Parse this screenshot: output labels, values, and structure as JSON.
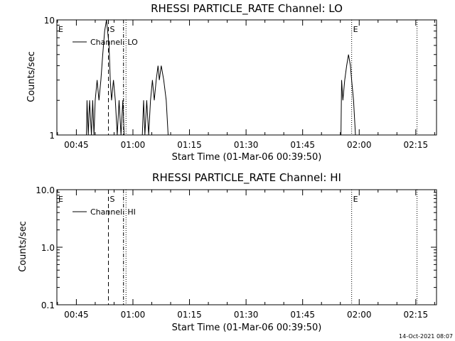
{
  "footer": {
    "timestamp": "14-Oct-2021 08:07"
  },
  "chart_data": [
    {
      "type": "line",
      "title": "RHESSI PARTICLE_RATE Channel: LO",
      "xlabel": "Start Time (01-Mar-06 00:39:50)",
      "ylabel": "Counts/sec",
      "yscale": "log",
      "ylim": [
        1,
        10
      ],
      "yticks": [
        {
          "v": 1,
          "label": "1"
        },
        {
          "v": 10,
          "label": "10"
        }
      ],
      "xlim": [
        "00:39:50",
        "02:20:30"
      ],
      "xticks": [
        {
          "t": "00:45",
          "label": "00:45"
        },
        {
          "t": "01:00",
          "label": "01:00"
        },
        {
          "t": "01:15",
          "label": "01:15"
        },
        {
          "t": "01:30",
          "label": "01:30"
        },
        {
          "t": "01:45",
          "label": "01:45"
        },
        {
          "t": "02:00",
          "label": "02:00"
        },
        {
          "t": "02:15",
          "label": "02:15"
        }
      ],
      "legend": {
        "position": "top-left",
        "label": "Channel: LO"
      },
      "markers": [
        {
          "t": "00:39:50",
          "label": "E",
          "style": "solid"
        },
        {
          "t": "00:53:30",
          "label": "S",
          "style": "dashed"
        },
        {
          "t": "00:57:30",
          "label": "",
          "style": "dash-dot"
        },
        {
          "t": "00:58:10",
          "label": "",
          "style": "dotted"
        },
        {
          "t": "01:58:00",
          "label": "E",
          "style": "dotted"
        },
        {
          "t": "02:15:20",
          "label": "",
          "style": "dotted"
        }
      ],
      "series": [
        {
          "name": "Channel: LO",
          "segments": [
            [
              [
                "00:47:40",
                1
              ],
              [
                "00:47:50",
                2
              ],
              [
                "00:48:10",
                1
              ],
              [
                "00:48:30",
                2
              ],
              [
                "00:49:00",
                1
              ],
              [
                "00:49:20",
                2
              ],
              [
                "00:49:40",
                1
              ],
              [
                "00:50:00",
                2
              ],
              [
                "00:50:30",
                3
              ],
              [
                "00:51:00",
                2
              ],
              [
                "00:51:30",
                3
              ],
              [
                "00:52:00",
                5
              ],
              [
                "00:52:30",
                8
              ],
              [
                "00:53:00",
                10
              ],
              [
                "00:53:40",
                6
              ],
              [
                "00:54:00",
                3
              ],
              [
                "00:54:20",
                2
              ],
              [
                "00:54:50",
                3
              ],
              [
                "00:55:20",
                2
              ],
              [
                "00:55:50",
                1
              ],
              [
                "00:56:20",
                2
              ],
              [
                "00:56:50",
                1
              ],
              [
                "00:57:20",
                2
              ],
              [
                "00:57:40",
                1
              ]
            ],
            [
              [
                "01:02:30",
                1
              ],
              [
                "01:02:50",
                2
              ],
              [
                "01:03:10",
                1
              ],
              [
                "01:03:40",
                2
              ],
              [
                "01:04:10",
                1
              ],
              [
                "01:04:40",
                2
              ],
              [
                "01:05:10",
                3
              ],
              [
                "01:05:40",
                2
              ],
              [
                "01:06:10",
                3
              ],
              [
                "01:06:40",
                4
              ],
              [
                "01:07:00",
                3
              ],
              [
                "01:07:30",
                4
              ],
              [
                "01:08:10",
                3
              ],
              [
                "01:08:50",
                2
              ],
              [
                "01:09:20",
                1
              ]
            ],
            [
              [
                "01:55:10",
                1
              ],
              [
                "01:55:20",
                3
              ],
              [
                "01:55:40",
                2
              ],
              [
                "01:56:10",
                3
              ],
              [
                "01:56:40",
                4
              ],
              [
                "01:57:10",
                5
              ],
              [
                "01:57:40",
                4
              ],
              [
                "01:58:00",
                3
              ],
              [
                "01:58:30",
                2
              ],
              [
                "01:59:00",
                1
              ]
            ]
          ]
        }
      ]
    },
    {
      "type": "line",
      "title": "RHESSI PARTICLE_RATE Channel: HI",
      "xlabel": "Start Time (01-Mar-06 00:39:50)",
      "ylabel": "Counts/sec",
      "yscale": "log",
      "ylim": [
        0.1,
        10
      ],
      "yticks": [
        {
          "v": 0.1,
          "label": "0.1"
        },
        {
          "v": 1,
          "label": "1.0"
        },
        {
          "v": 10,
          "label": "10.0"
        }
      ],
      "xlim": [
        "00:39:50",
        "02:20:30"
      ],
      "xticks": [
        {
          "t": "00:45",
          "label": "00:45"
        },
        {
          "t": "01:00",
          "label": "01:00"
        },
        {
          "t": "01:15",
          "label": "01:15"
        },
        {
          "t": "01:30",
          "label": "01:30"
        },
        {
          "t": "01:45",
          "label": "01:45"
        },
        {
          "t": "02:00",
          "label": "02:00"
        },
        {
          "t": "02:15",
          "label": "02:15"
        }
      ],
      "legend": {
        "position": "top-left",
        "label": "Channel: HI"
      },
      "markers": [
        {
          "t": "00:39:50",
          "label": "E",
          "style": "solid"
        },
        {
          "t": "00:53:30",
          "label": "S",
          "style": "dashed"
        },
        {
          "t": "00:57:30",
          "label": "",
          "style": "dash-dot"
        },
        {
          "t": "00:58:10",
          "label": "",
          "style": "dotted"
        },
        {
          "t": "01:58:00",
          "label": "E",
          "style": "dotted"
        },
        {
          "t": "02:15:20",
          "label": "",
          "style": "dotted"
        }
      ],
      "series": [
        {
          "name": "Channel: HI",
          "segments": []
        }
      ]
    }
  ]
}
